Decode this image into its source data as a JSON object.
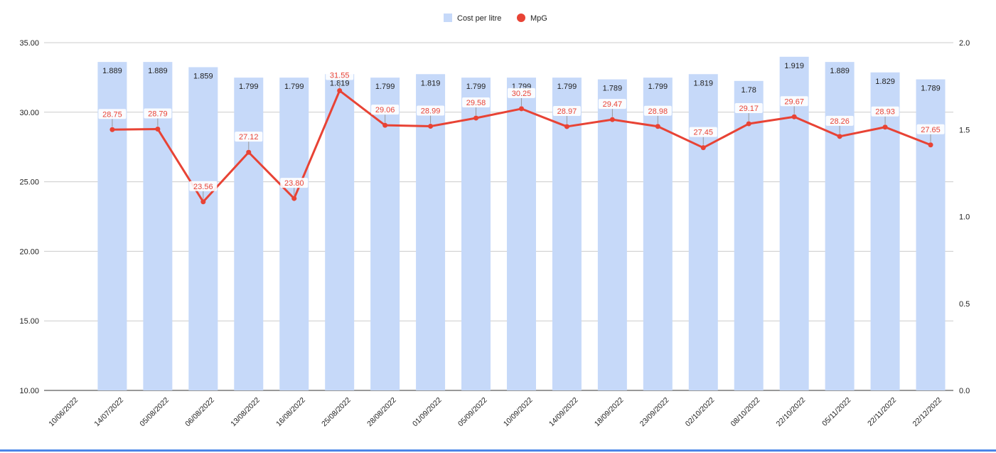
{
  "colors": {
    "bar": "#c6d9f9",
    "line": "#e84335",
    "grid": "#cccccc",
    "axis_text": "#222222",
    "label_line_text": "#e84335",
    "label_bar_text": "#222222"
  },
  "legend": {
    "items": [
      {
        "label": "Cost per litre",
        "shape": "square",
        "color": "#c6d9f9"
      },
      {
        "label": "MpG",
        "shape": "circle",
        "color": "#e84335"
      }
    ]
  },
  "chart_data": {
    "type": "bar+line",
    "title": "",
    "categories": [
      "10/06/2022",
      "14/07/2022",
      "05/08/2022",
      "06/08/2022",
      "13/08/2022",
      "16/08/2022",
      "25/08/2022",
      "28/08/2022",
      "01/09/2022",
      "05/09/2022",
      "10/09/2022",
      "14/09/2022",
      "18/09/2022",
      "23/09/2022",
      "02/10/2022",
      "08/10/2022",
      "22/10/2022",
      "05/11/2022",
      "22/11/2022",
      "22/12/2022"
    ],
    "left_axis": {
      "ticks": [
        "10.00",
        "15.00",
        "20.00",
        "25.00",
        "30.00",
        "35.00"
      ],
      "range": [
        10,
        35
      ]
    },
    "right_axis": {
      "ticks": [
        "0.0",
        "0.5",
        "1.0",
        "1.5",
        "2.0"
      ],
      "range": [
        0,
        2
      ]
    },
    "series": [
      {
        "name": "Cost per litre",
        "type": "bar",
        "axis": "right",
        "values": [
          null,
          1.889,
          1.889,
          1.859,
          1.799,
          1.799,
          1.819,
          1.799,
          1.819,
          1.799,
          1.799,
          1.799,
          1.789,
          1.799,
          1.819,
          1.78,
          1.919,
          1.889,
          1.829,
          1.789
        ],
        "labels": [
          "",
          "1.889",
          "1.889",
          "1.859",
          "1.799",
          "1.799",
          "1.819",
          "1.799",
          "1.819",
          "1.799",
          "1.799",
          "1.799",
          "1.789",
          "1.799",
          "1.819",
          "1.78",
          "1.919",
          "1.889",
          "1.829",
          "1.789"
        ]
      },
      {
        "name": "MpG",
        "type": "line",
        "axis": "left",
        "values": [
          null,
          28.75,
          28.79,
          23.56,
          27.12,
          23.8,
          31.55,
          29.06,
          28.99,
          29.58,
          30.25,
          28.97,
          29.47,
          28.98,
          27.45,
          29.17,
          29.67,
          28.26,
          28.93,
          27.65
        ],
        "labels": [
          "",
          "28.75",
          "28.79",
          "23.56",
          "27.12",
          "23.80",
          "31.55",
          "29.06",
          "28.99",
          "29.58",
          "30.25",
          "28.97",
          "29.47",
          "28.98",
          "27.45",
          "29.17",
          "29.67",
          "28.26",
          "28.93",
          "27.65"
        ]
      }
    ],
    "grid": true,
    "legend_position": "top-center"
  }
}
